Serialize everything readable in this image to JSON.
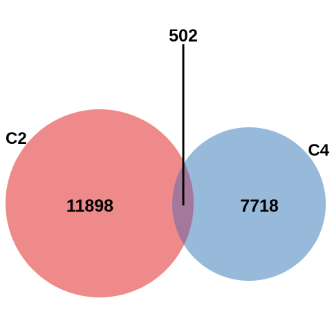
{
  "diagram": {
    "type": "venn",
    "sets": [
      {
        "name": "C2",
        "only_count": "11898",
        "color": "#EE8A8A"
      },
      {
        "name": "C4",
        "only_count": "7718",
        "color": "#98BADA"
      }
    ],
    "intersection": {
      "count": "502"
    },
    "intersection_color": "#A4789C",
    "leader_line_color": "#000000"
  }
}
